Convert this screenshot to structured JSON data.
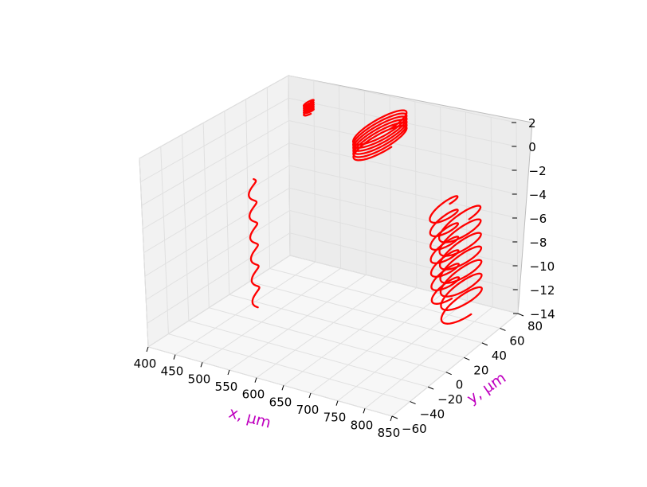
{
  "chart_data": {
    "type": "line",
    "projection": "3d",
    "xlabel": "x, μm",
    "ylabel": "y, μm",
    "zlabel": "",
    "xlim": [
      400,
      850
    ],
    "ylim": [
      -60,
      80
    ],
    "zlim": [
      -14,
      2
    ],
    "x_ticks": [
      "400",
      "450",
      "500",
      "550",
      "600",
      "650",
      "700",
      "750",
      "800",
      "850"
    ],
    "y_ticks": [
      "−60",
      "−40",
      "−20",
      "0",
      "20",
      "40",
      "60",
      "80"
    ],
    "z_ticks": [
      "2",
      "0",
      "−2",
      "−4",
      "−6",
      "−8",
      "−10",
      "−12",
      "−14"
    ],
    "grid": true,
    "line_color": "#ff0000",
    "series": [
      {
        "values": {
          "center_x": 450,
          "center_y": 75,
          "radius": 4,
          "turns": 5,
          "z_top": 0.4,
          "z_bottom": -0.6
        }
      },
      {
        "values": {
          "center_x": 620,
          "center_y": 60,
          "radius": 22,
          "turns": 6,
          "z_top": 0.8,
          "z_bottom": -0.8
        }
      },
      {
        "values": {
          "center_x": 510,
          "center_y": -10,
          "radius": 3,
          "turns": 6,
          "z_top": -1.0,
          "z_bottom": -12.0
        }
      },
      {
        "values": {
          "center_x": 790,
          "center_y": 35,
          "radius": 12,
          "turns": 7,
          "z_top": -2.5,
          "z_bottom": -10.5
        }
      },
      {
        "values": {
          "center_x": 830,
          "center_y": 30,
          "radius": 18,
          "turns": 7,
          "z_top": -3.0,
          "z_bottom": -11.0
        }
      }
    ]
  }
}
